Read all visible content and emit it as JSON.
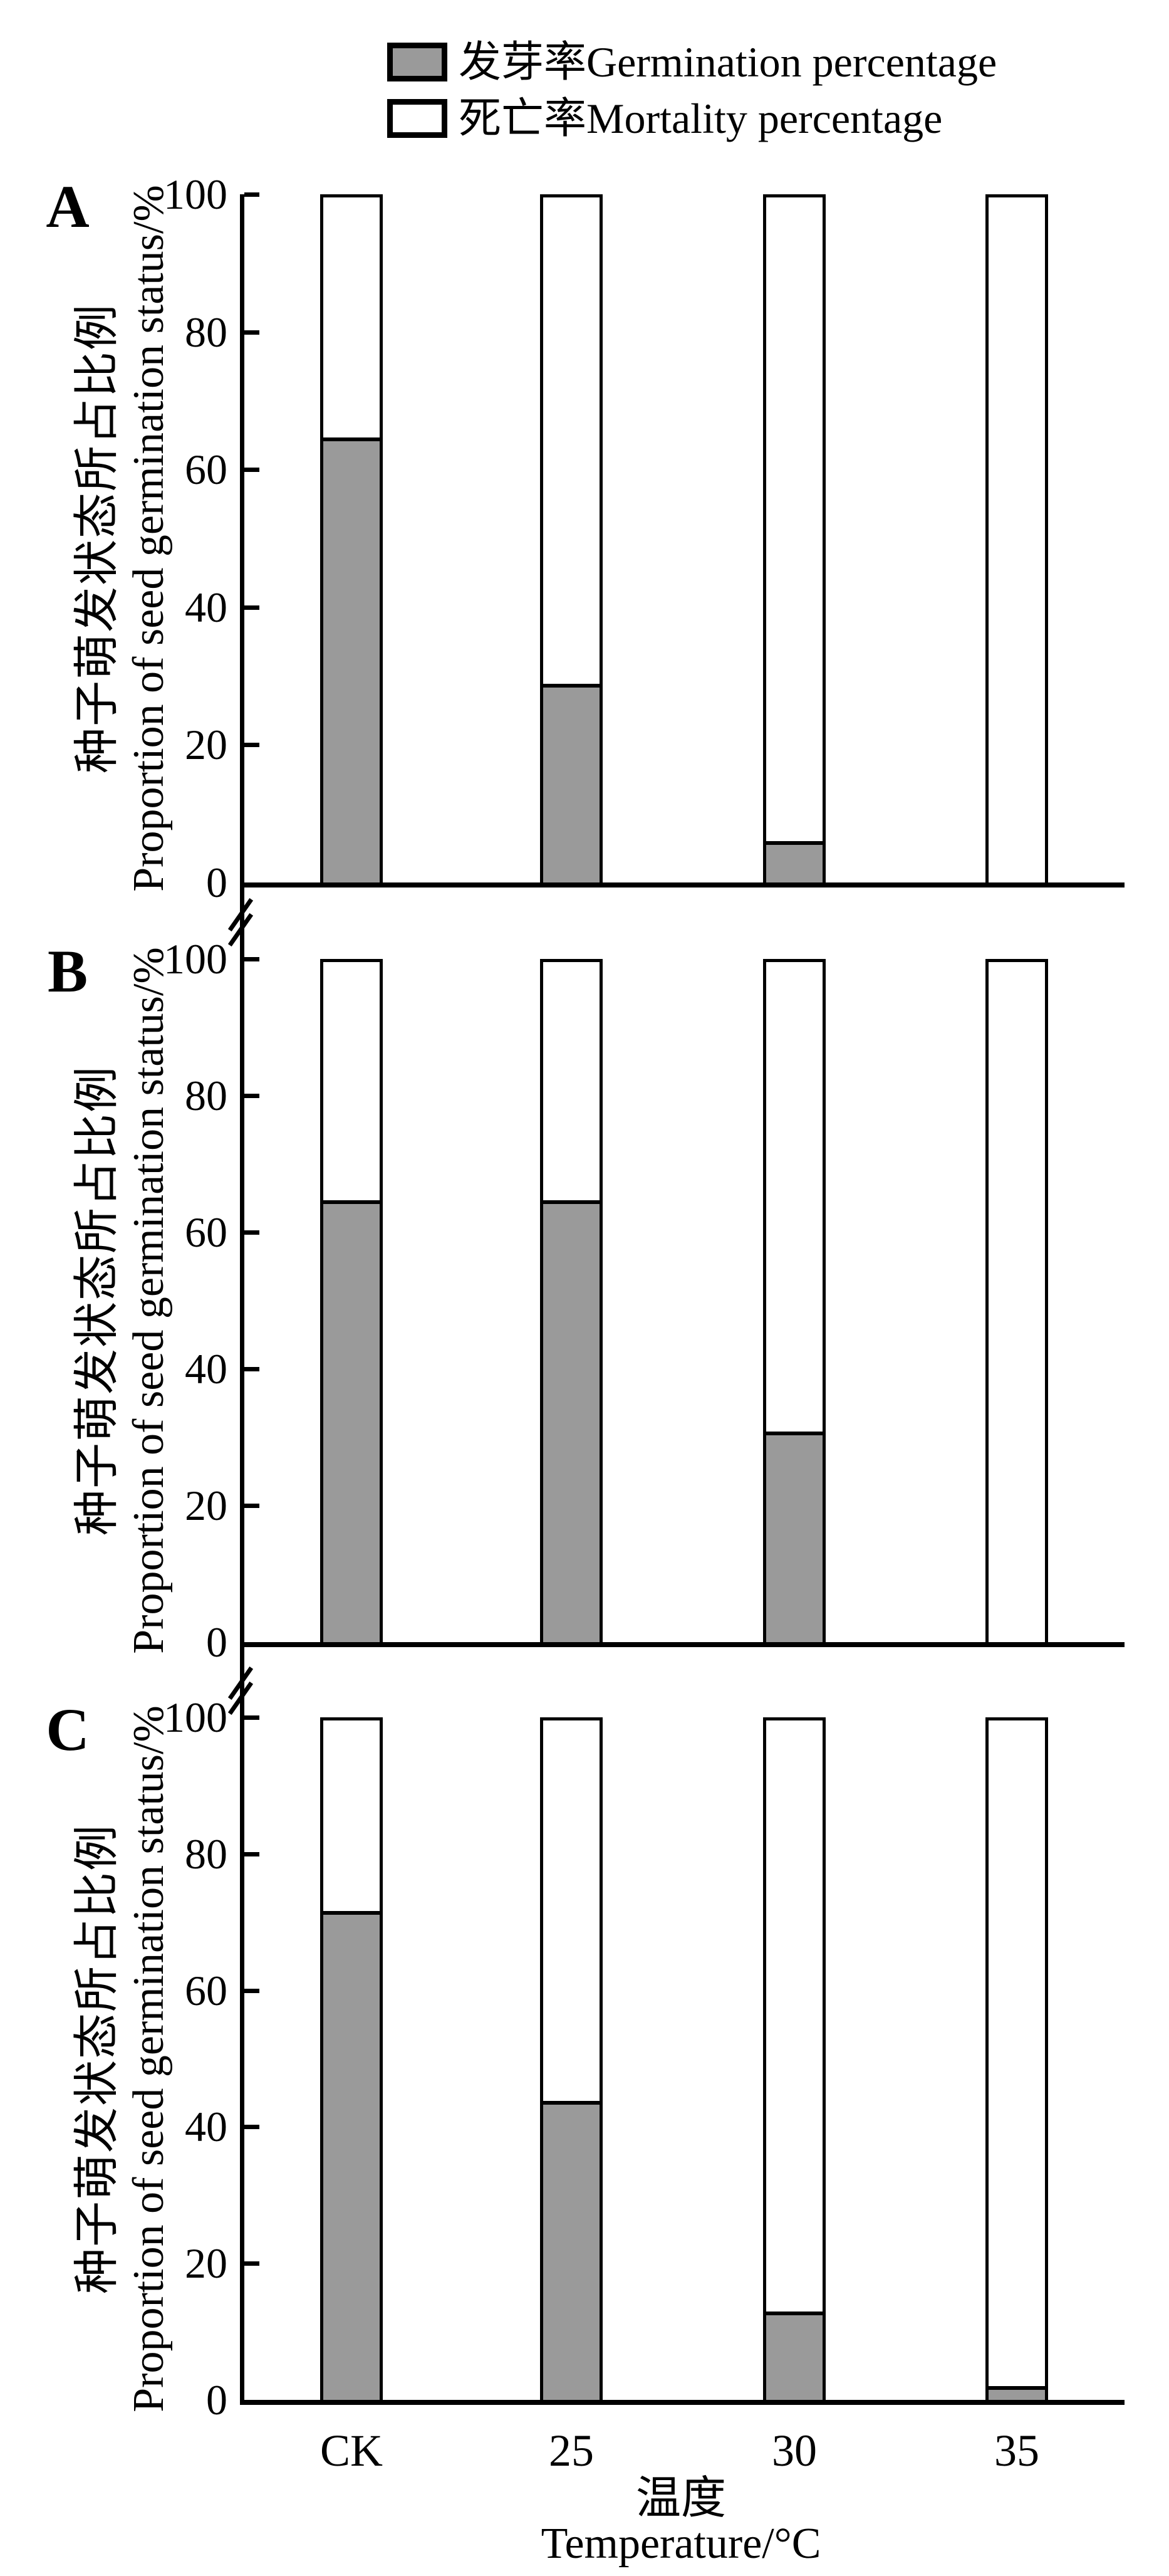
{
  "figure": {
    "legend": {
      "items": [
        {
          "label": "发芽率Germination percentage",
          "swatch": "germination_fill"
        },
        {
          "label": "死亡率Mortality percentage",
          "swatch": "mortality_fill"
        }
      ]
    },
    "y_axis": {
      "tick_labels": [
        "100",
        "80",
        "60",
        "40",
        "20",
        "0"
      ],
      "title_cn": "种子萌发状态所占比例",
      "title_en": "Proportion of seed germination status/%"
    },
    "x_axis": {
      "tick_labels": [
        "CK",
        "25",
        "30",
        "35"
      ],
      "title_cn": "温度",
      "title_en": "Temperature/°C"
    },
    "panels": [
      {
        "letter": "A"
      },
      {
        "letter": "B"
      },
      {
        "letter": "C"
      }
    ],
    "colors": {
      "germination_fill": "#9a9a9a",
      "mortality_fill": "#ffffff",
      "line": "#000000"
    }
  },
  "chart_data": [
    {
      "type": "bar",
      "stacked": true,
      "title": "A",
      "categories": [
        "CK",
        "25",
        "30",
        "35"
      ],
      "series": [
        {
          "name": "发芽率Germination percentage",
          "values": [
            65,
            29,
            6,
            0
          ]
        },
        {
          "name": "死亡率Mortality percentage",
          "values": [
            35,
            71,
            94,
            100
          ]
        }
      ],
      "xlabel": "温度 Temperature/°C",
      "ylabel": "种子萌发状态所占比例 Proportion of seed germination status/%",
      "ylim": [
        0,
        100
      ],
      "grid": false,
      "legend_position": "top"
    },
    {
      "type": "bar",
      "stacked": true,
      "title": "B",
      "categories": [
        "CK",
        "25",
        "30",
        "35"
      ],
      "series": [
        {
          "name": "发芽率Germination percentage",
          "values": [
            65,
            65,
            31,
            0
          ]
        },
        {
          "name": "死亡率Mortality percentage",
          "values": [
            35,
            35,
            69,
            100
          ]
        }
      ],
      "xlabel": "温度 Temperature/°C",
      "ylabel": "种子萌发状态所占比例 Proportion of seed germination status/%",
      "ylim": [
        0,
        100
      ],
      "grid": false,
      "legend_position": "top"
    },
    {
      "type": "bar",
      "stacked": true,
      "title": "C",
      "categories": [
        "CK",
        "25",
        "30",
        "35"
      ],
      "series": [
        {
          "name": "发芽率Germination percentage",
          "values": [
            72,
            44,
            13,
            2
          ]
        },
        {
          "name": "死亡率Mortality percentage",
          "values": [
            28,
            56,
            87,
            98
          ]
        }
      ],
      "xlabel": "温度 Temperature/°C",
      "ylabel": "种子萌发状态所占比例 Proportion of seed germination status/%",
      "ylim": [
        0,
        100
      ],
      "grid": false,
      "legend_position": "top"
    }
  ]
}
